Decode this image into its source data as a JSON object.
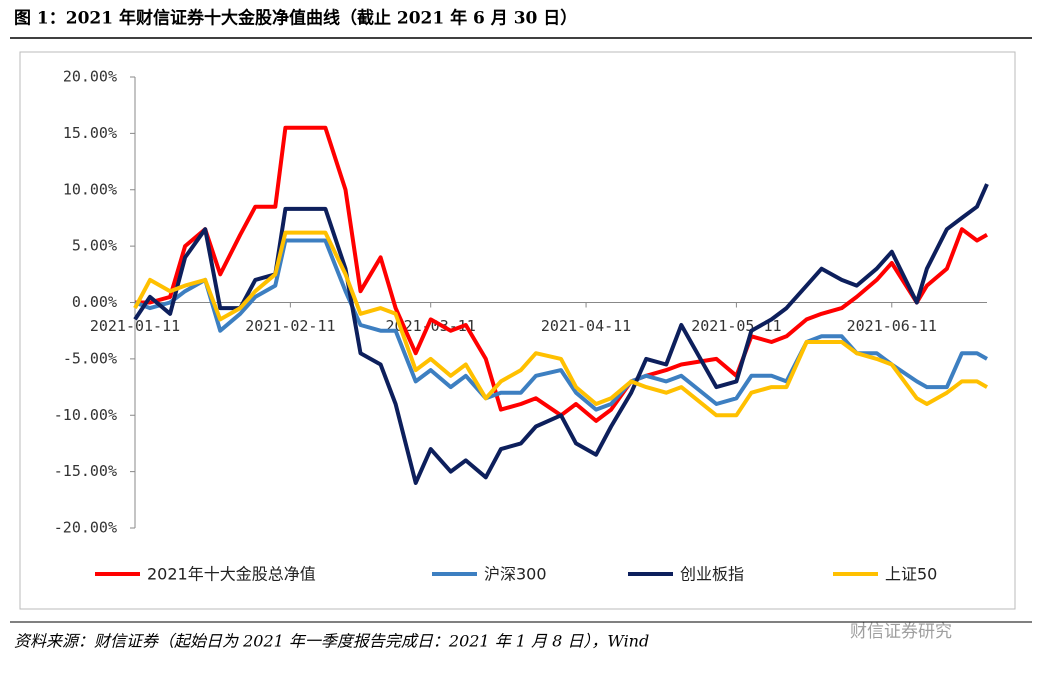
{
  "chart_data": {
    "type": "line",
    "title": "图 1：2021 年财信证券十大金股净值曲线（截止 2021 年 6 月 30 日）",
    "source": "资料来源：财信证券（起始日为 2021 年一季度报告完成日：2021 年 1 月 8 日），Wind",
    "watermark": "财信证券研究",
    "x": [
      "2021-01-11",
      "2021-01-14",
      "2021-01-18",
      "2021-01-21",
      "2021-01-25",
      "2021-01-28",
      "2021-02-01",
      "2021-02-04",
      "2021-02-08",
      "2021-02-10",
      "2021-02-18",
      "2021-02-22",
      "2021-02-25",
      "2021-03-01",
      "2021-03-04",
      "2021-03-08",
      "2021-03-11",
      "2021-03-15",
      "2021-03-18",
      "2021-03-22",
      "2021-03-25",
      "2021-03-29",
      "2021-04-01",
      "2021-04-06",
      "2021-04-09",
      "2021-04-13",
      "2021-04-16",
      "2021-04-20",
      "2021-04-23",
      "2021-04-27",
      "2021-04-30",
      "2021-05-07",
      "2021-05-11",
      "2021-05-14",
      "2021-05-18",
      "2021-05-21",
      "2021-05-25",
      "2021-05-28",
      "2021-06-01",
      "2021-06-04",
      "2021-06-08",
      "2021-06-11",
      "2021-06-16",
      "2021-06-18",
      "2021-06-22",
      "2021-06-25",
      "2021-06-28",
      "2021-06-30"
    ],
    "series": [
      {
        "name": "2021年十大金股总净值",
        "color": "#ff0000",
        "values": [
          0,
          0,
          0.5,
          5,
          6.5,
          2.5,
          6,
          8.5,
          8.5,
          15.5,
          15.5,
          10,
          1,
          4,
          -0.5,
          -4.5,
          -1.5,
          -2.5,
          -2,
          -5,
          -9.5,
          -9,
          -8.5,
          -10,
          -9,
          -10.5,
          -9.5,
          -7,
          -6.5,
          -6,
          -5.5,
          -5,
          -6.5,
          -3,
          -3.5,
          -3,
          -1.5,
          -1,
          -0.5,
          0.5,
          2,
          3.5,
          0,
          1.5,
          3,
          6.5,
          5.5,
          6
        ]
      },
      {
        "name": "沪深300",
        "color": "#3d7fc1",
        "values": [
          0,
          -0.5,
          0,
          1,
          2,
          -2.5,
          -1,
          0.5,
          1.5,
          5.5,
          5.5,
          1,
          -2,
          -2.5,
          -2.5,
          -7,
          -6,
          -7.5,
          -6.5,
          -8.5,
          -8,
          -8,
          -6.5,
          -6,
          -8,
          -9.5,
          -9,
          -7,
          -6.5,
          -7,
          -6.5,
          -9,
          -8.5,
          -6.5,
          -6.5,
          -7,
          -3.5,
          -3,
          -3,
          -4.5,
          -4.5,
          -5.5,
          -7,
          -7.5,
          -7.5,
          -4.5,
          -4.5,
          -5
        ]
      },
      {
        "name": "创业板指",
        "color": "#0d1f5c",
        "values": [
          -1.5,
          0.5,
          -1,
          4,
          6.5,
          -0.5,
          -0.5,
          2,
          2.5,
          8.3,
          8.3,
          3,
          -4.5,
          -5.5,
          -9,
          -16,
          -13,
          -15,
          -14,
          -15.5,
          -13,
          -12.5,
          -11,
          -10,
          -12.5,
          -13.5,
          -11,
          -8,
          -5,
          -5.5,
          -2,
          -7.5,
          -7,
          -2.5,
          -1.5,
          -0.5,
          1.5,
          3,
          2,
          1.5,
          3,
          4.5,
          0,
          3,
          6.5,
          7.5,
          8.5,
          10.5
        ]
      },
      {
        "name": "上证50",
        "color": "#ffc000",
        "values": [
          -0.5,
          2,
          1,
          1.5,
          2,
          -1.5,
          -0.5,
          1,
          2.5,
          6.2,
          6.2,
          2.5,
          -1,
          -0.5,
          -1,
          -6,
          -5,
          -6.5,
          -5.5,
          -8.5,
          -7,
          -6,
          -4.5,
          -5,
          -7.5,
          -9,
          -8.5,
          -7,
          -7.5,
          -8,
          -7.5,
          -10,
          -10,
          -8,
          -7.5,
          -7.5,
          -3.5,
          -3.5,
          -3.5,
          -4.5,
          -5,
          -5.5,
          -8.5,
          -9,
          -8,
          -7,
          -7,
          -7.5
        ]
      }
    ],
    "xlim": [
      "2021-01-11",
      "2021-06-30"
    ],
    "xticks": [
      "2021-01-11",
      "2021-02-11",
      "2021-03-11",
      "2021-04-11",
      "2021-05-11",
      "2021-06-11"
    ],
    "ylim": [
      -20,
      20
    ],
    "yticks": [
      {
        "value": 20,
        "label": "20.00%"
      },
      {
        "value": 15,
        "label": "15.00%"
      },
      {
        "value": 10,
        "label": "10.00%"
      },
      {
        "value": 5,
        "label": "5.00%"
      },
      {
        "value": 0,
        "label": "0.00%"
      },
      {
        "value": -5,
        "label": "-5.00%"
      },
      {
        "value": -10,
        "label": "-10.00%"
      },
      {
        "value": -15,
        "label": "-15.00%"
      },
      {
        "value": -20,
        "label": "-20.00%"
      }
    ],
    "legend": "bottom"
  }
}
